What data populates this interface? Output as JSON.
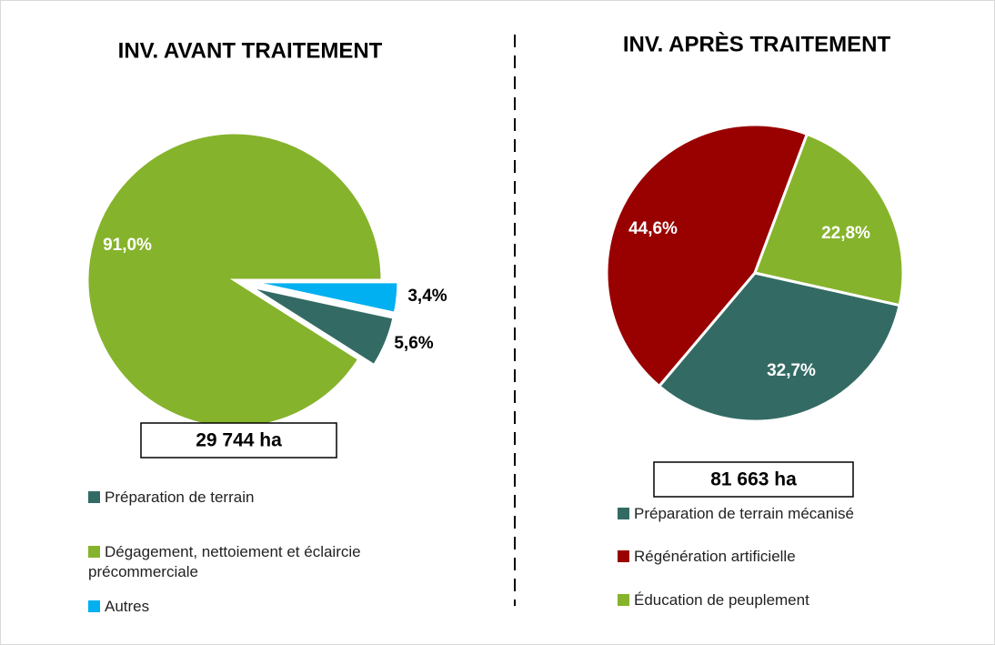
{
  "chart_data": [
    {
      "type": "pie",
      "title": "INV. AVANT TRAITEMENT",
      "categories": [
        "Préparation de terrain",
        "Dégagement, nettoiement et éclaircie précommerciale",
        "Autres"
      ],
      "values": [
        5.6,
        91.0,
        3.4
      ],
      "value_labels": [
        "5,6%",
        "91,0%",
        "3,4%"
      ],
      "colors": [
        "#336b64",
        "#86b32c",
        "#00b0f0"
      ],
      "annotation": "29 744 ha"
    },
    {
      "type": "pie",
      "title": "INV. APRÈS TRAITEMENT",
      "categories": [
        "Préparation de terrain mécanisé",
        "Régénération artificielle",
        "Éducation de peuplement"
      ],
      "values": [
        32.7,
        44.6,
        22.8
      ],
      "value_labels": [
        "32,7%",
        "44,6%",
        "22,8%"
      ],
      "colors": [
        "#336b64",
        "#990000",
        "#86b32c"
      ],
      "annotation": "81 663 ha"
    }
  ]
}
